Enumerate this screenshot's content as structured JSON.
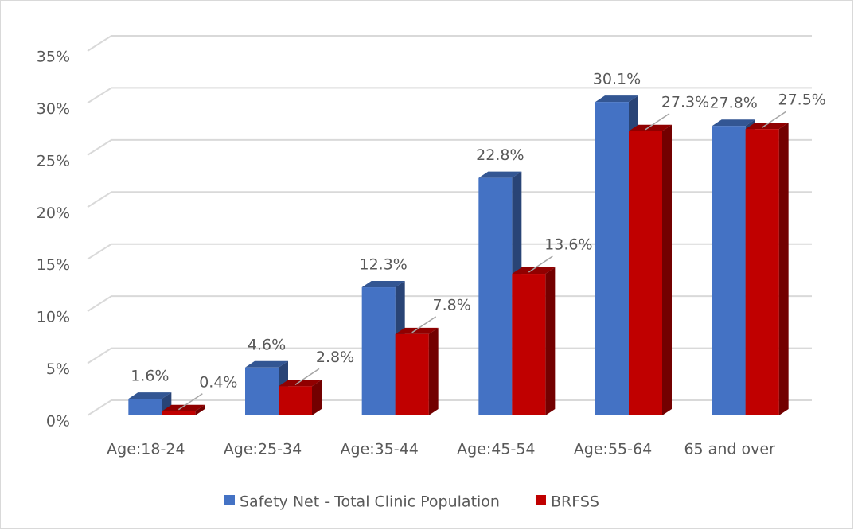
{
  "chart_data": {
    "type": "bar3d",
    "categories": [
      "Age:18-24",
      "Age:25-34",
      "Age:35-44",
      "Age:45-54",
      "Age:55-64",
      "65 and over"
    ],
    "series": [
      {
        "name": "Safety Net - Total Clinic Population",
        "color": "#4472c4",
        "values": [
          1.6,
          4.6,
          12.3,
          22.8,
          30.1,
          27.8
        ],
        "value_labels": [
          "1.6%",
          "4.6%",
          "12.3%",
          "22.8%",
          "30.1%",
          "27.8%"
        ]
      },
      {
        "name": "BRFSS",
        "color": "#c00000",
        "values": [
          0.4,
          2.8,
          7.8,
          13.6,
          27.3,
          27.5
        ],
        "value_labels": [
          "0.4%",
          "2.8%",
          "7.8%",
          "13.6%",
          "27.3%",
          "27.5%"
        ]
      }
    ],
    "ylim": [
      0,
      35
    ],
    "yticks": [
      {
        "value": 0,
        "label": "0%"
      },
      {
        "value": 5,
        "label": "5%"
      },
      {
        "value": 10,
        "label": "10%"
      },
      {
        "value": 15,
        "label": "15%"
      },
      {
        "value": 20,
        "label": "20%"
      },
      {
        "value": 25,
        "label": "25%"
      },
      {
        "value": 30,
        "label": "30%"
      },
      {
        "value": 35,
        "label": "35%"
      }
    ],
    "grid": true,
    "legend": "bottom"
  }
}
